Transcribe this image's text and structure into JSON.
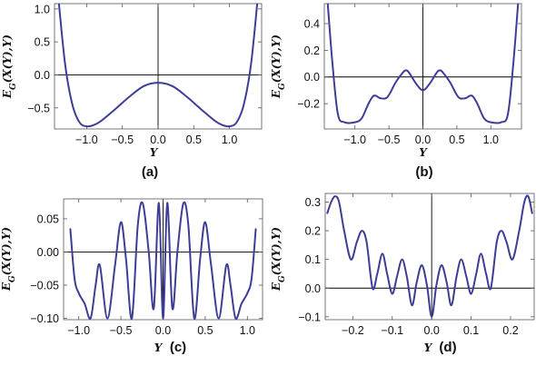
{
  "chart_data": [
    {
      "type": "line",
      "panel_label": "(a)",
      "xlabel": "Y",
      "ylabel": "E_G(X(Y),Y)",
      "xlim": [
        -1.45,
        1.45
      ],
      "ylim": [
        -0.82,
        1.08
      ],
      "xticks": [
        -1.0,
        -0.5,
        0.0,
        0.5,
        1.0
      ],
      "xtick_labels": [
        "−1.0",
        "−0.5",
        "0.0",
        "0.5",
        "1.0"
      ],
      "yticks": [
        1.0,
        0.5,
        0.0,
        -0.5
      ],
      "ytick_labels": [
        "1.0",
        "0.5",
        "0.0",
        "−0.5"
      ],
      "series": [
        {
          "color": "#3d3d96",
          "x": [
            -1.39,
            -1.3,
            -1.2,
            -1.1,
            -1.0,
            -0.9,
            -0.8,
            -0.6,
            -0.4,
            -0.2,
            0.0,
            0.2,
            0.4,
            0.6,
            0.8,
            0.9,
            1.0,
            1.1,
            1.2,
            1.3,
            1.39
          ],
          "y": [
            1.1,
            0.15,
            -0.45,
            -0.72,
            -0.78,
            -0.76,
            -0.7,
            -0.52,
            -0.33,
            -0.17,
            -0.12,
            -0.17,
            -0.33,
            -0.52,
            -0.7,
            -0.76,
            -0.78,
            -0.72,
            -0.45,
            0.15,
            1.1
          ]
        }
      ]
    },
    {
      "type": "line",
      "panel_label": "(b)",
      "xlabel": "Y",
      "ylabel": "E_G(X(Y),Y)",
      "xlim": [
        -1.45,
        1.45
      ],
      "ylim": [
        -0.39,
        0.55
      ],
      "xticks": [
        -1.0,
        -0.5,
        0.0,
        0.5,
        1.0
      ],
      "xtick_labels": [
        "−1.0",
        "−0.5",
        "0.0",
        "0.5",
        "1.0"
      ],
      "yticks": [
        0.4,
        0.2,
        0.0,
        -0.2
      ],
      "ytick_labels": [
        "0.4",
        "0.2",
        "0.0",
        "−0.2"
      ],
      "series": [
        {
          "color": "#3d3d96",
          "x": [
            -1.4,
            -1.33,
            -1.25,
            -1.15,
            -1.0,
            -0.9,
            -0.8,
            -0.72,
            -0.62,
            -0.52,
            -0.4,
            -0.3,
            -0.25,
            -0.2,
            -0.1,
            0.0,
            0.1,
            0.2,
            0.25,
            0.3,
            0.4,
            0.52,
            0.62,
            0.72,
            0.8,
            0.9,
            1.0,
            1.15,
            1.25,
            1.33,
            1.4
          ],
          "y": [
            0.55,
            0.1,
            -0.28,
            -0.34,
            -0.34,
            -0.31,
            -0.2,
            -0.14,
            -0.16,
            -0.15,
            -0.04,
            0.03,
            0.05,
            0.03,
            -0.05,
            -0.1,
            -0.05,
            0.03,
            0.05,
            0.03,
            -0.04,
            -0.15,
            -0.16,
            -0.14,
            -0.2,
            -0.31,
            -0.34,
            -0.34,
            -0.28,
            0.1,
            0.55
          ]
        }
      ]
    },
    {
      "type": "line",
      "panel_label": "(c)",
      "xlabel": "Y",
      "ylabel": "E_G(X(Y),Y)",
      "xlim": [
        -1.18,
        1.18
      ],
      "ylim": [
        -0.102,
        0.08
      ],
      "xticks": [
        -1.0,
        -0.5,
        0.0,
        0.5,
        1.0
      ],
      "xtick_labels": [
        "−1.0",
        "−0.5",
        "0.0",
        "0.5",
        "1.0"
      ],
      "yticks": [
        0.05,
        0.0,
        -0.05,
        -0.1
      ],
      "ytick_labels": [
        "0.05",
        "0.00",
        "−0.05",
        "−0.10"
      ],
      "series": [
        {
          "color": "#3d3d96",
          "x": [
            -1.1,
            -1.05,
            -1.0,
            -0.93,
            -0.86,
            -0.8,
            -0.75,
            -0.66,
            -0.57,
            -0.5,
            -0.44,
            -0.37,
            -0.3,
            -0.24,
            -0.17,
            -0.11,
            -0.05,
            0.0,
            0.05,
            0.11,
            0.17,
            0.24,
            0.3,
            0.37,
            0.44,
            0.5,
            0.57,
            0.66,
            0.75,
            0.8,
            0.86,
            0.93,
            1.0,
            1.05,
            1.1
          ],
          "y": [
            0.035,
            -0.04,
            -0.062,
            -0.078,
            -0.1,
            -0.05,
            -0.02,
            -0.1,
            -0.02,
            0.045,
            -0.01,
            -0.1,
            0.04,
            0.073,
            0.0,
            -0.085,
            0.074,
            -0.1,
            0.074,
            -0.085,
            0.0,
            0.073,
            0.04,
            -0.1,
            -0.01,
            0.045,
            -0.02,
            -0.1,
            -0.02,
            -0.05,
            -0.1,
            -0.078,
            -0.062,
            -0.04,
            0.035
          ]
        }
      ]
    },
    {
      "type": "line",
      "panel_label": "(d)",
      "xlabel": "Y",
      "ylabel": "E_G(X(Y),Y)",
      "xlim": [
        -0.27,
        0.26
      ],
      "ylim": [
        -0.11,
        0.33
      ],
      "xticks": [
        -0.2,
        -0.1,
        0.0,
        0.1,
        0.2
      ],
      "xtick_labels": [
        "−0.2",
        "−0.1",
        "0.0",
        "0.1",
        "0.2"
      ],
      "yticks": [
        0.3,
        0.2,
        0.1,
        0.0,
        -0.1
      ],
      "ytick_labels": [
        "0.3",
        "0.2",
        "0.1",
        "0.0",
        "−0.1"
      ],
      "series": [
        {
          "color": "#3d3d96",
          "x": [
            -0.265,
            -0.255,
            -0.245,
            -0.235,
            -0.222,
            -0.205,
            -0.19,
            -0.177,
            -0.165,
            -0.15,
            -0.138,
            -0.125,
            -0.113,
            -0.1,
            -0.088,
            -0.075,
            -0.063,
            -0.05,
            -0.038,
            -0.025,
            -0.012,
            0.0,
            0.012,
            0.025,
            0.038,
            0.05,
            0.063,
            0.075,
            0.088,
            0.1,
            0.113,
            0.125,
            0.138,
            0.15,
            0.165,
            0.177,
            0.19,
            0.205,
            0.222,
            0.235,
            0.245,
            0.255
          ],
          "y": [
            0.26,
            0.3,
            0.32,
            0.3,
            0.2,
            0.1,
            0.16,
            0.2,
            0.16,
            0.0,
            0.05,
            0.12,
            0.05,
            -0.02,
            0.04,
            0.1,
            0.04,
            -0.06,
            0.02,
            0.08,
            0.01,
            -0.1,
            0.01,
            0.08,
            0.02,
            -0.06,
            0.04,
            0.1,
            0.04,
            -0.02,
            0.05,
            0.12,
            0.05,
            0.0,
            0.16,
            0.2,
            0.16,
            0.1,
            0.2,
            0.3,
            0.32,
            0.26
          ]
        }
      ]
    }
  ]
}
